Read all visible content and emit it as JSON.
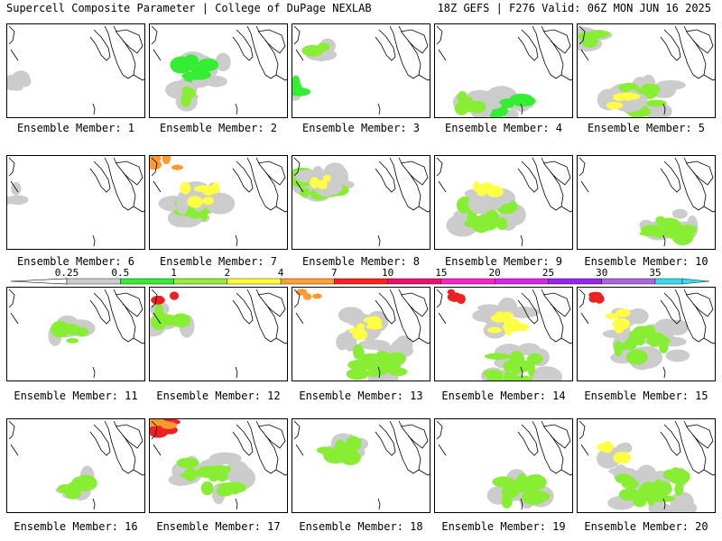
{
  "header": {
    "left": "Supercell Composite Parameter | College of DuPage NEXLAB",
    "right": "18Z GEFS | F276 Valid: 06Z MON JUN 16 2025"
  },
  "panel_label_prefix": "Ensemble Member:",
  "members": [
    {
      "num": "1",
      "blobs": [
        {
          "l": 0,
          "s": "w",
          "c": 0.0,
          "r": 0.6,
          "a": 0.25
        }
      ]
    },
    {
      "num": "2",
      "blobs": [
        {
          "l": 1,
          "s": "w",
          "c": 0.3,
          "r": 0.5,
          "a": 0.45
        },
        {
          "l": 2,
          "s": "w",
          "c": 0.25,
          "r": 0.75,
          "a": 0.1
        }
      ]
    },
    {
      "num": "3",
      "blobs": [
        {
          "l": 1,
          "s": "w",
          "c": 0.0,
          "r": 0.65,
          "a": 0.12
        },
        {
          "l": 2,
          "s": "w",
          "c": 0.15,
          "r": 0.25,
          "a": 0.08
        }
      ]
    },
    {
      "num": "4",
      "blobs": [
        {
          "l": 1,
          "s": "w",
          "c": 0.5,
          "r": 0.85,
          "a": 0.3
        },
        {
          "l": 2,
          "s": "w",
          "c": 0.25,
          "r": 0.85,
          "a": 0.25
        }
      ]
    },
    {
      "num": "5",
      "blobs": [
        {
          "l": 2,
          "s": "w",
          "c": 0.4,
          "r": 0.8,
          "a": 0.6
        },
        {
          "l": 3,
          "s": "w",
          "c": 0.25,
          "r": 0.85,
          "a": 0.3
        },
        {
          "l": 2,
          "s": "w",
          "c": 0.05,
          "r": 0.15,
          "a": 0.15
        }
      ]
    },
    {
      "num": "6",
      "blobs": [
        {
          "l": 0,
          "s": "w",
          "c": 0.0,
          "r": 0.4,
          "a": 0.2
        }
      ]
    },
    {
      "num": "7",
      "blobs": [
        {
          "l": 2,
          "s": "w",
          "c": 0.25,
          "r": 0.5,
          "a": 0.6
        },
        {
          "l": 4,
          "s": "nw",
          "c": 0.0,
          "r": 0.0,
          "a": 0.2
        },
        {
          "l": 3,
          "s": "w",
          "c": 0.3,
          "r": 0.4,
          "a": 0.4
        }
      ]
    },
    {
      "num": "8",
      "blobs": [
        {
          "l": 2,
          "s": "w",
          "c": 0.15,
          "r": 0.3,
          "a": 0.55
        },
        {
          "l": 3,
          "s": "w",
          "c": 0.15,
          "r": 0.25,
          "a": 0.25
        }
      ]
    },
    {
      "num": "9",
      "blobs": [
        {
          "l": 2,
          "s": "w",
          "c": 0.3,
          "r": 0.6,
          "a": 0.6
        },
        {
          "l": 3,
          "s": "w",
          "c": 0.35,
          "r": 0.4,
          "a": 0.2
        }
      ]
    },
    {
      "num": "10",
      "blobs": [
        {
          "l": 2,
          "s": "w",
          "c": 0.6,
          "r": 0.75,
          "a": 0.5
        }
      ]
    },
    {
      "num": "11",
      "blobs": [
        {
          "l": 2,
          "s": "w",
          "c": 0.4,
          "r": 0.5,
          "a": 0.3
        }
      ]
    },
    {
      "num": "12",
      "blobs": [
        {
          "l": 2,
          "s": "w",
          "c": 0.1,
          "r": 0.3,
          "a": 0.35
        },
        {
          "l": 5,
          "s": "nw",
          "c": 0.0,
          "r": 0.0,
          "a": 0.12
        }
      ]
    },
    {
      "num": "13",
      "blobs": [
        {
          "l": 2,
          "s": "w",
          "c": 0.5,
          "r": 0.75,
          "a": 0.8
        },
        {
          "l": 3,
          "s": "w",
          "c": 0.45,
          "r": 0.4,
          "a": 0.4
        },
        {
          "l": 4,
          "s": "nw",
          "c": 0.0,
          "r": 0.0,
          "a": 0.15
        }
      ]
    },
    {
      "num": "14",
      "blobs": [
        {
          "l": 2,
          "s": "w",
          "c": 0.5,
          "r": 0.85,
          "a": 0.75
        },
        {
          "l": 3,
          "s": "w",
          "c": 0.45,
          "r": 0.35,
          "a": 0.45
        },
        {
          "l": 5,
          "s": "nw",
          "c": 0.0,
          "r": 0.0,
          "a": 0.15
        }
      ]
    },
    {
      "num": "15",
      "blobs": [
        {
          "l": 2,
          "s": "w",
          "c": 0.4,
          "r": 0.6,
          "a": 0.75
        },
        {
          "l": 3,
          "s": "w",
          "c": 0.3,
          "r": 0.35,
          "a": 0.25
        },
        {
          "l": 5,
          "s": "nw",
          "c": 0.0,
          "r": 0.0,
          "a": 0.15
        }
      ]
    },
    {
      "num": "16",
      "blobs": [
        {
          "l": 2,
          "s": "w",
          "c": 0.45,
          "r": 0.7,
          "a": 0.25
        }
      ]
    },
    {
      "num": "17",
      "blobs": [
        {
          "l": 2,
          "s": "w",
          "c": 0.35,
          "r": 0.6,
          "a": 0.75
        },
        {
          "l": 5,
          "s": "nw",
          "c": 0.0,
          "r": 0.0,
          "a": 0.3
        },
        {
          "l": 4,
          "s": "nw",
          "c": 0.0,
          "r": 0.0,
          "a": 0.2
        }
      ]
    },
    {
      "num": "18",
      "blobs": [
        {
          "l": 2,
          "s": "w",
          "c": 0.3,
          "r": 0.35,
          "a": 0.35
        }
      ]
    },
    {
      "num": "19",
      "blobs": [
        {
          "l": 2,
          "s": "w",
          "c": 0.55,
          "r": 0.75,
          "a": 0.55
        }
      ]
    },
    {
      "num": "20",
      "blobs": [
        {
          "l": 2,
          "s": "w",
          "c": 0.45,
          "r": 0.75,
          "a": 0.85
        },
        {
          "l": 3,
          "s": "w",
          "c": 0.2,
          "r": 0.35,
          "a": 0.2
        }
      ]
    }
  ],
  "colorbar": {
    "ticks": [
      "0.25",
      "0.5",
      "1",
      "2",
      "4",
      "7",
      "10",
      "15",
      "20",
      "25",
      "30",
      "35"
    ],
    "colors": [
      "#cccccc",
      "#33ee33",
      "#99ee33",
      "#ffff33",
      "#ffa030",
      "#ff2020",
      "#ee1070",
      "#ff22cc",
      "#dd22ee",
      "#9922ee",
      "#aa66dd",
      "#33ddee"
    ]
  },
  "level_colors": [
    "#cccccc",
    "#33ee33",
    "#88ee33",
    "#ffff44",
    "#ff9a30",
    "#ee2020"
  ]
}
